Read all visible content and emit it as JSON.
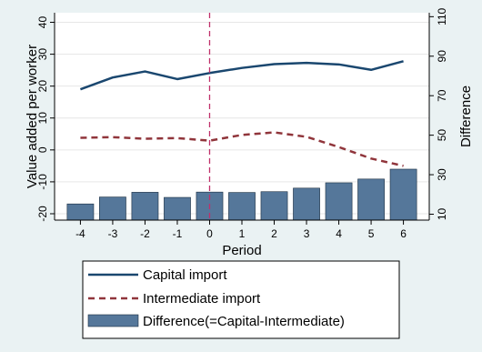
{
  "chart_data": {
    "type": "bar+line",
    "x": [
      -4,
      -3,
      -2,
      -1,
      0,
      1,
      2,
      3,
      4,
      5,
      6
    ],
    "xlabel": "Period",
    "ylabel": "Value added per worker",
    "ylabel_right": "Difference",
    "ylim": [
      -22,
      43
    ],
    "ylim_right": [
      7,
      112
    ],
    "y_ticks": [
      -20,
      -10,
      0,
      10,
      20,
      30,
      40
    ],
    "y_ticks_right": [
      10,
      30,
      50,
      70,
      90,
      110
    ],
    "vline_x": 0,
    "series": [
      {
        "name": "Capital import",
        "type": "line",
        "axis": "left",
        "color": "#1a476f",
        "style": "solid",
        "values": [
          19,
          22.7,
          24.6,
          22.2,
          24.1,
          25.7,
          26.9,
          27.3,
          26.8,
          25.1,
          27.8
        ]
      },
      {
        "name": "Intermediate import",
        "type": "line",
        "axis": "left",
        "color": "#90353b",
        "style": "dashed",
        "values": [
          3.8,
          4.0,
          3.5,
          3.7,
          2.9,
          4.7,
          5.5,
          4.1,
          0.9,
          -2.7,
          -5.0
        ]
      },
      {
        "name": "Difference(=Capital-Intermediate)",
        "type": "bar",
        "axis": "right",
        "color": "#55779a",
        "values": [
          15.2,
          18.7,
          21.1,
          18.5,
          21.2,
          21.0,
          21.4,
          23.2,
          25.9,
          27.8,
          32.8
        ]
      }
    ],
    "legend_position": "bottom"
  }
}
